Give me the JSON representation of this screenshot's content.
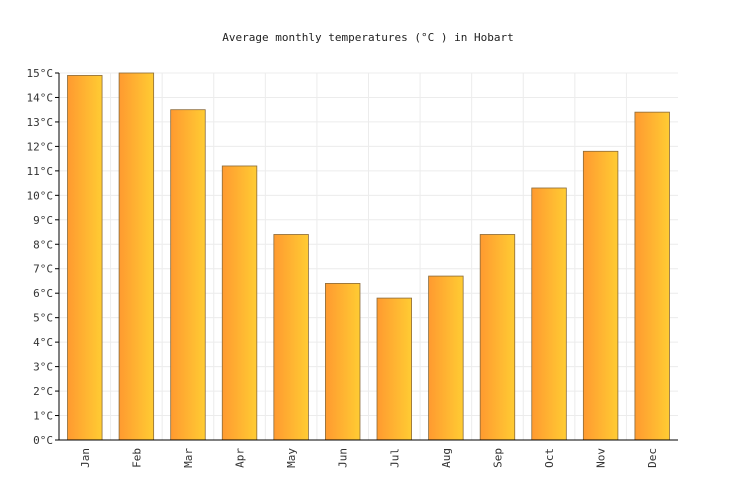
{
  "chart_data": {
    "type": "bar",
    "title": "Average monthly temperatures (°C ) in Hobart",
    "xlabel": "",
    "ylabel": "",
    "categories": [
      "Jan",
      "Feb",
      "Mar",
      "Apr",
      "May",
      "Jun",
      "Jul",
      "Aug",
      "Sep",
      "Oct",
      "Nov",
      "Dec"
    ],
    "values": [
      14.9,
      15.0,
      13.5,
      11.2,
      8.4,
      6.4,
      5.8,
      6.7,
      8.4,
      10.3,
      11.8,
      13.4
    ],
    "ylim": [
      0,
      15
    ],
    "yticks": [
      "0°C",
      "1°C",
      "2°C",
      "3°C",
      "4°C",
      "5°C",
      "6°C",
      "7°C",
      "8°C",
      "9°C",
      "10°C",
      "11°C",
      "12°C",
      "13°C",
      "14°C",
      "15°C"
    ],
    "grid": true,
    "legend": "none",
    "bar_color_start": "#ff9a30",
    "bar_color_end": "#ffcc33"
  }
}
